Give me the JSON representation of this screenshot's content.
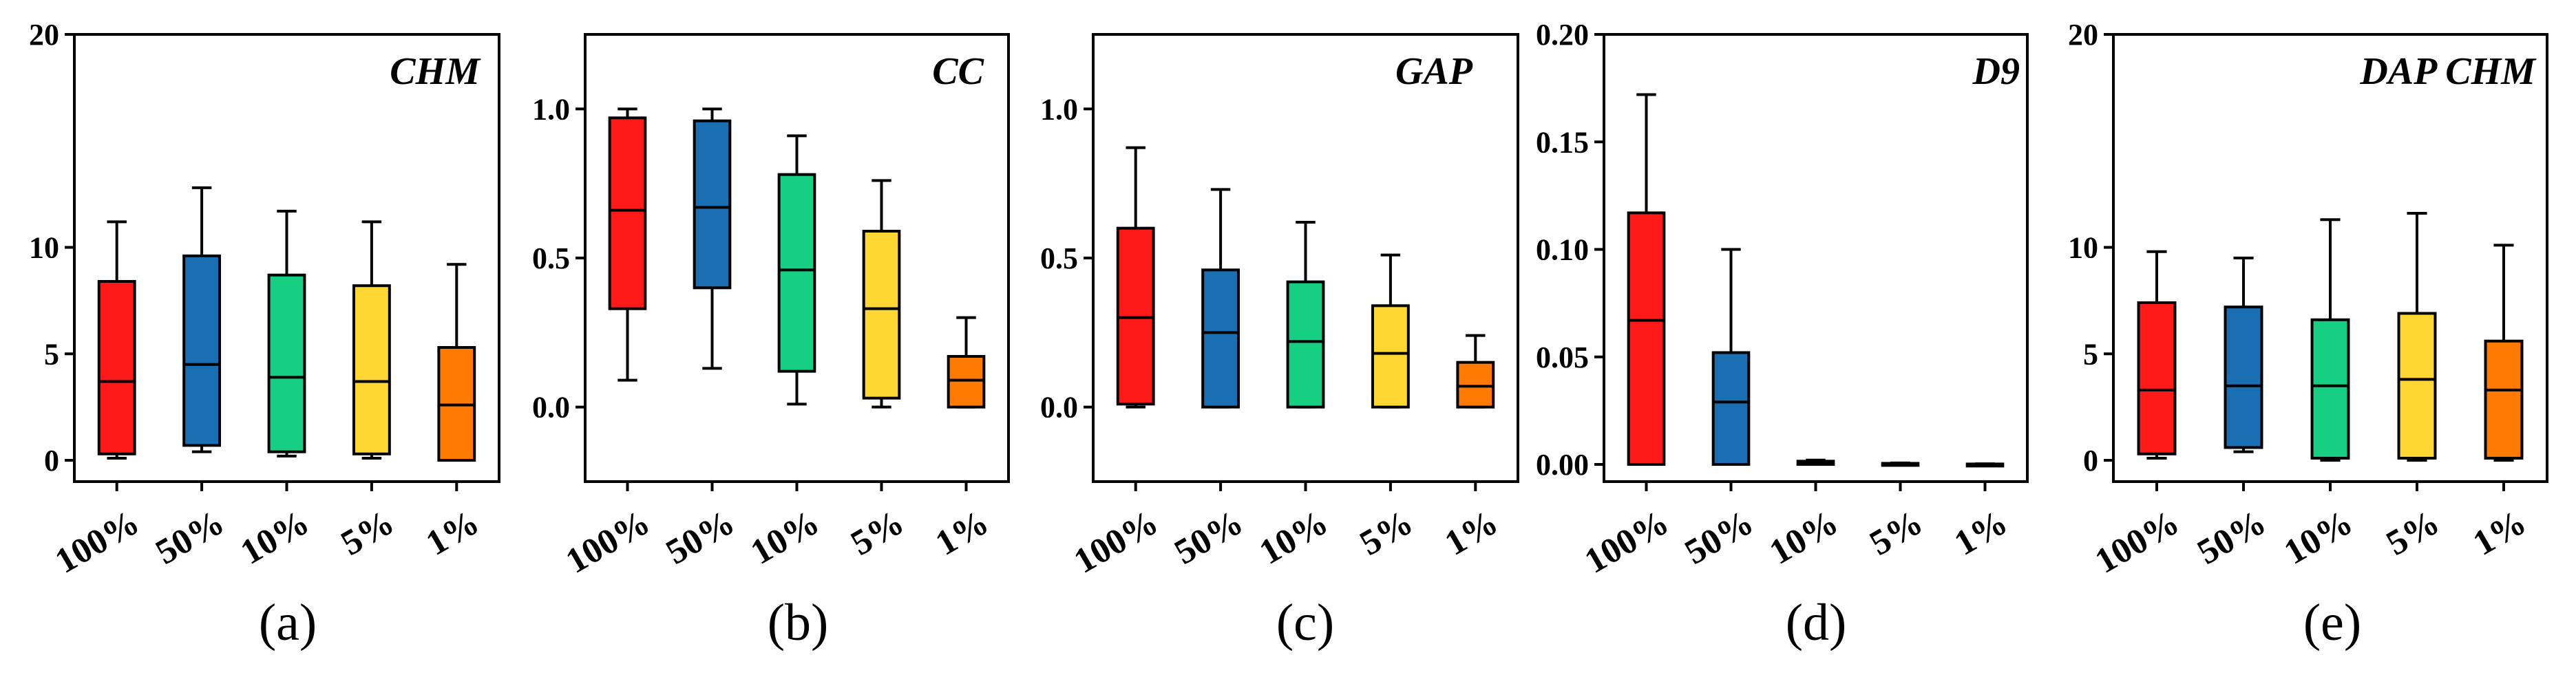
{
  "panel_labels": [
    "(a)",
    "(b)",
    "(c)",
    "(d)",
    "(e)"
  ],
  "colors": {
    "box_fills": [
      "#ff1a1a",
      "#1a6fb3",
      "#16cf82",
      "#ffd733",
      "#ff7a00"
    ],
    "stroke": "#000000"
  },
  "chart_data": [
    {
      "type": "box",
      "title": "CHM",
      "categories": [
        "100%",
        "50%",
        "10%",
        "5%",
        "1%"
      ],
      "ylim": [
        -1,
        20
      ],
      "yticks": [
        0,
        5,
        10,
        20
      ],
      "ytick_labels": [
        "0",
        "5",
        "10",
        "20"
      ],
      "boxes": [
        {
          "min": 0.1,
          "q1": 0.3,
          "median": 3.7,
          "q3": 8.4,
          "max": 11.2
        },
        {
          "min": 0.4,
          "q1": 0.7,
          "median": 4.5,
          "q3": 9.6,
          "max": 12.8
        },
        {
          "min": 0.2,
          "q1": 0.4,
          "median": 3.9,
          "q3": 8.7,
          "max": 11.7
        },
        {
          "min": 0.1,
          "q1": 0.3,
          "median": 3.7,
          "q3": 8.2,
          "max": 11.2
        },
        {
          "min": 0.0,
          "q1": 0.0,
          "median": 2.6,
          "q3": 5.3,
          "max": 9.2
        }
      ]
    },
    {
      "type": "box",
      "title": "CC",
      "categories": [
        "100%",
        "50%",
        "10%",
        "5%",
        "1%"
      ],
      "ylim": [
        -0.25,
        1.25
      ],
      "yticks": [
        0.0,
        0.5,
        1.0
      ],
      "ytick_labels": [
        "0.0",
        "0.5",
        "1.0"
      ],
      "boxes": [
        {
          "min": 0.09,
          "q1": 0.33,
          "median": 0.66,
          "q3": 0.97,
          "max": 1.0
        },
        {
          "min": 0.13,
          "q1": 0.4,
          "median": 0.67,
          "q3": 0.96,
          "max": 1.0
        },
        {
          "min": 0.01,
          "q1": 0.12,
          "median": 0.46,
          "q3": 0.78,
          "max": 0.91
        },
        {
          "min": 0.0,
          "q1": 0.03,
          "median": 0.33,
          "q3": 0.59,
          "max": 0.76
        },
        {
          "min": 0.0,
          "q1": 0.0,
          "median": 0.09,
          "q3": 0.17,
          "max": 0.3
        }
      ]
    },
    {
      "type": "box",
      "title": "GAP",
      "categories": [
        "100%",
        "50%",
        "10%",
        "5%",
        "1%"
      ],
      "ylim": [
        -0.25,
        1.25
      ],
      "yticks": [
        0.0,
        0.5,
        1.0
      ],
      "ytick_labels": [
        "0.0",
        "0.5",
        "1.0"
      ],
      "boxes": [
        {
          "min": 0.0,
          "q1": 0.01,
          "median": 0.3,
          "q3": 0.6,
          "max": 0.87
        },
        {
          "min": 0.0,
          "q1": 0.0,
          "median": 0.25,
          "q3": 0.46,
          "max": 0.73
        },
        {
          "min": 0.0,
          "q1": 0.0,
          "median": 0.22,
          "q3": 0.42,
          "max": 0.62
        },
        {
          "min": 0.0,
          "q1": 0.0,
          "median": 0.18,
          "q3": 0.34,
          "max": 0.51
        },
        {
          "min": 0.0,
          "q1": 0.0,
          "median": 0.07,
          "q3": 0.15,
          "max": 0.24
        }
      ]
    },
    {
      "type": "box",
      "title": "D9",
      "categories": [
        "100%",
        "50%",
        "10%",
        "5%",
        "1%"
      ],
      "ylim": [
        -0.008,
        0.2
      ],
      "yticks": [
        0.0,
        0.05,
        0.1,
        0.15,
        0.2
      ],
      "ytick_labels": [
        "0.00",
        "0.05",
        "0.10",
        "0.15",
        "0.20"
      ],
      "boxes": [
        {
          "min": 0.0,
          "q1": 0.0,
          "median": 0.067,
          "q3": 0.117,
          "max": 0.172
        },
        {
          "min": 0.0,
          "q1": 0.0,
          "median": 0.029,
          "q3": 0.052,
          "max": 0.1
        },
        {
          "min": 0.0,
          "q1": 0.0,
          "median": 0.0008,
          "q3": 0.0015,
          "max": 0.002
        },
        {
          "min": 0.0,
          "q1": 0.0,
          "median": 0.0003,
          "q3": 0.0005,
          "max": 0.0007
        },
        {
          "min": 0.0,
          "q1": 0.0,
          "median": 0.0001,
          "q3": 0.0002,
          "max": 0.0003
        }
      ]
    },
    {
      "type": "box",
      "title": "DAP CHM",
      "categories": [
        "100%",
        "50%",
        "10%",
        "5%",
        "1%"
      ],
      "ylim": [
        -1,
        20
      ],
      "yticks": [
        0,
        5,
        10,
        20
      ],
      "ytick_labels": [
        "0",
        "5",
        "10",
        "20"
      ],
      "boxes": [
        {
          "min": 0.1,
          "q1": 0.3,
          "median": 3.3,
          "q3": 7.4,
          "max": 9.8
        },
        {
          "min": 0.4,
          "q1": 0.6,
          "median": 3.5,
          "q3": 7.2,
          "max": 9.5
        },
        {
          "min": 0.0,
          "q1": 0.1,
          "median": 3.5,
          "q3": 6.6,
          "max": 11.3
        },
        {
          "min": 0.0,
          "q1": 0.1,
          "median": 3.8,
          "q3": 6.9,
          "max": 11.6
        },
        {
          "min": 0.0,
          "q1": 0.1,
          "median": 3.3,
          "q3": 5.6,
          "max": 10.1
        }
      ]
    }
  ]
}
